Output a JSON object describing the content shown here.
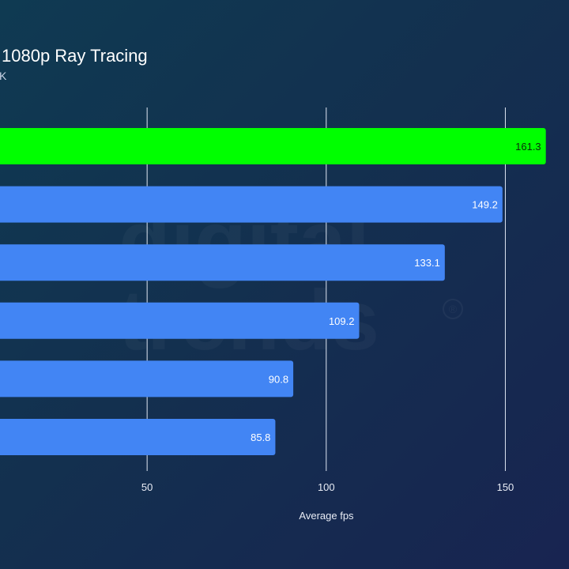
{
  "chart_data": {
    "type": "bar",
    "orientation": "horizontal",
    "title": "1080p Ray Tracing",
    "subtitle": "K",
    "xlabel": "Average fps",
    "ylabel": "",
    "xlim": [
      0,
      165
    ],
    "xticks": [
      50,
      100,
      150
    ],
    "grid": true,
    "categories": [
      "",
      "",
      "",
      "",
      "",
      ""
    ],
    "values": [
      161.3,
      149.2,
      133.1,
      109.2,
      90.8,
      85.8
    ],
    "bar_colors": [
      "#00ff00",
      "#4285f4",
      "#4285f4",
      "#4285f4",
      "#4285f4",
      "#4285f4"
    ],
    "value_label_colors": [
      "#0a2a0a",
      "#ffffff",
      "#ffffff",
      "#ffffff",
      "#ffffff",
      "#ffffff"
    ]
  },
  "watermark": {
    "line1": "digital",
    "line2": "trends",
    "mark": "®"
  }
}
